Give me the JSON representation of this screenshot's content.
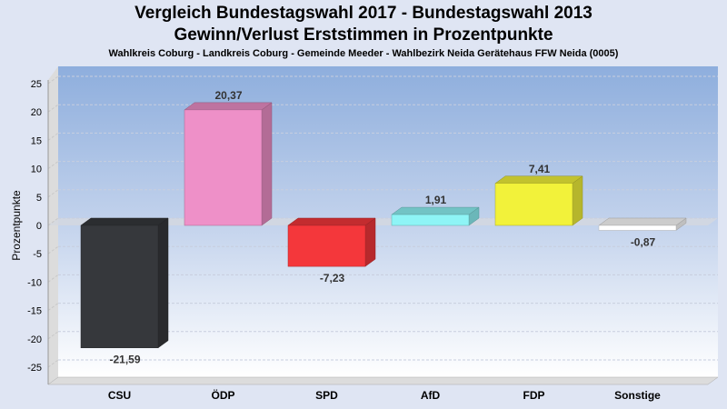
{
  "chart_data": {
    "type": "bar",
    "title": "Vergleich Bundestagswahl 2017 - Bundestagswahl 2013",
    "subtitle": "Gewinn/Verlust Erststimmen in Prozentpunkte",
    "subtitle2": "Wahlkreis Coburg - Landkreis Coburg - Gemeinde Meeder - Wahlbezirk Neida Gerätehaus FFW Neida (0005)",
    "ylabel": "Prozentpunkte",
    "xlabel": "",
    "ylim": [
      -27,
      27
    ],
    "yticks": [
      25,
      20,
      15,
      10,
      5,
      0,
      -5,
      -10,
      -15,
      -20,
      -25
    ],
    "categories": [
      "CSU",
      "ÖDP",
      "SPD",
      "AfD",
      "FDP",
      "Sonstige"
    ],
    "values": [
      -21.59,
      20.37,
      -7.23,
      1.91,
      7.41,
      -0.87
    ],
    "labels": [
      "-21,59",
      "20,37",
      "-7,23",
      "1,91",
      "7,41",
      "-0,87"
    ],
    "colors": [
      "#36383c",
      "#ee90c8",
      "#f4373b",
      "#8ef4f6",
      "#f2f23a",
      "#ffffff"
    ],
    "grid": true
  }
}
